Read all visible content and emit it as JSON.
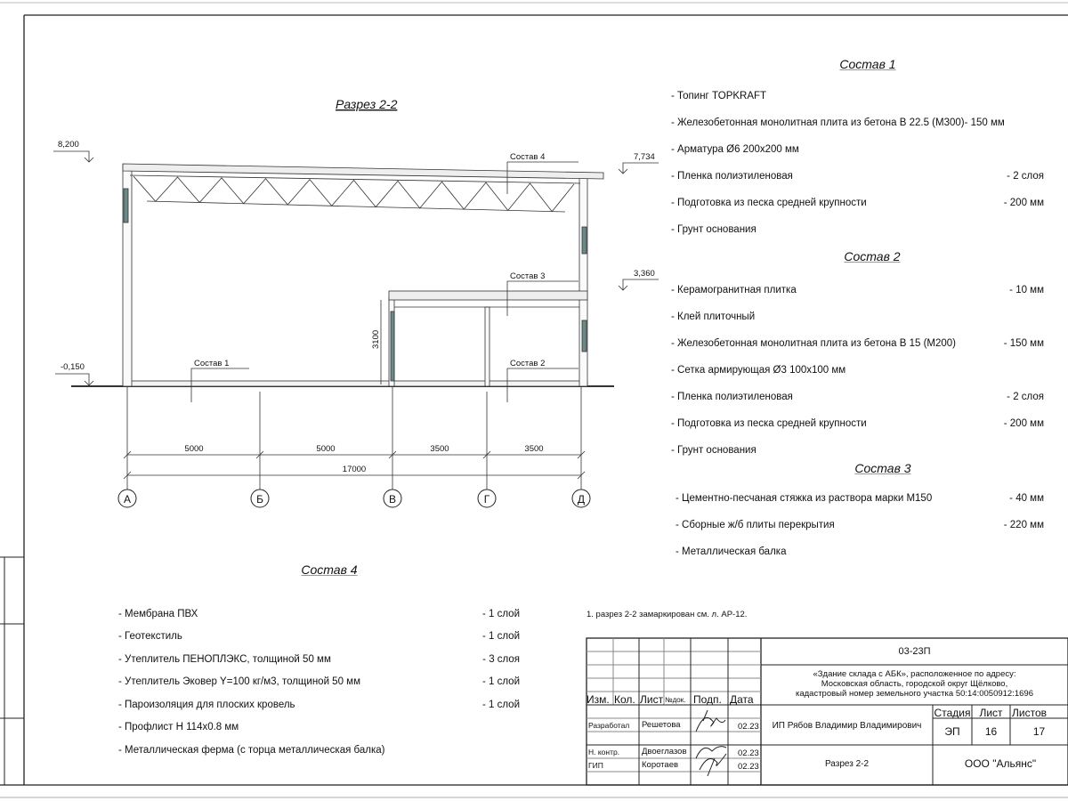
{
  "drawing": {
    "title": "Разрез 2-2",
    "levels": {
      "top_left": "8,200",
      "top_right": "7,734",
      "mid_right": "3,360",
      "ground": "-0,150"
    },
    "layer_labels": {
      "s1": "Состав 1",
      "s2": "Состав 2",
      "s3": "Состав 3",
      "s4": "Состав 4"
    },
    "height_dim": "3100",
    "spans": [
      "5000",
      "5000",
      "3500",
      "3500"
    ],
    "total_span": "17000",
    "axes": [
      "А",
      "Б",
      "В",
      "Г",
      "Д"
    ]
  },
  "compositions": {
    "s1": {
      "title": "Состав 1",
      "items": [
        {
          "label": "- Топинг TOPKRAFT",
          "value": ""
        },
        {
          "label": "- Железобетонная  монолитная плита из бетона  В 22.5 (М300)- 150 мм",
          "value": ""
        },
        {
          "label": "- Арматура Ø6 200х200 мм",
          "value": ""
        },
        {
          "label": "- Пленка полиэтиленовая",
          "value": "-  2 слоя"
        },
        {
          "label": "- Подготовка из песка средней  крупности",
          "value": "- 200 мм"
        },
        {
          "label": "- Грунт основания",
          "value": ""
        }
      ]
    },
    "s2": {
      "title": "Состав 2",
      "items": [
        {
          "label": "- Керамогранитная плитка",
          "value": "- 10 мм"
        },
        {
          "label": "- Клей плиточный",
          "value": ""
        },
        {
          "label": "- Железобетонная  монолитная плита из бетона В 15 (М200)",
          "value": "- 150 мм"
        },
        {
          "label": "- Сетка армирующая Ø3 100х100 мм",
          "value": ""
        },
        {
          "label": "- Пленка полиэтиленовая",
          "value": "-  2 слоя"
        },
        {
          "label": "- Подготовка из песка средней  крупности",
          "value": "- 200 мм"
        },
        {
          "label": "- Грунт основания",
          "value": ""
        }
      ]
    },
    "s3": {
      "title": "Состав 3",
      "items": [
        {
          "label": "- Цементно-песчаная стяжка  из раствора марки М150",
          "value": "- 40 мм"
        },
        {
          "label": "- Сборные ж/б плиты перекрытия",
          "value": "- 220 мм"
        },
        {
          "label": "- Металлическая  балка",
          "value": ""
        }
      ]
    },
    "s4": {
      "title": "Состав 4",
      "items": [
        {
          "label": "- Мембрана ПВХ",
          "value": "- 1 слой"
        },
        {
          "label": "- Геотекстиль",
          "value": "- 1 слой"
        },
        {
          "label": "- Утеплитель ПЕНОПЛЭКС, толщиной 50 мм",
          "value": "- 3 слоя"
        },
        {
          "label": "- Утеплитель Эковер Y=100 кг/м3, толщиной 50 мм",
          "value": "- 1 слой"
        },
        {
          "label": "- Пароизоляция для плоских кровель",
          "value": "- 1 слой"
        },
        {
          "label": "- Профлист Н 114х0.8 мм",
          "value": ""
        },
        {
          "label": "- Металлическая ферма (с торца металлическая балка)",
          "value": ""
        }
      ]
    }
  },
  "note": "1. разрез 2-2 замаркирован см. л. АР-12.",
  "title_block": {
    "code": "03-23П",
    "address_lines": [
      "«Здание склада с АБК», расположенное по адресу:",
      "Московская область, городской округ Щёлково,",
      "кадастровый номер земельного участка 50:14:0050912:1696"
    ],
    "headers": {
      "izm": "Изм.",
      "kol": "Кол.",
      "list": "Лист",
      "ndok": "№док.",
      "podp": "Подп.",
      "data": "Дата"
    },
    "people": [
      {
        "role": "Разработал",
        "name": "Решетова",
        "date": "02.23"
      },
      {
        "role": "Н. контр.",
        "name": "Двоеглазов",
        "date": "02.23"
      },
      {
        "role": "ГИП",
        "name": "Коротаев",
        "date": "02.23"
      }
    ],
    "organization_author": "ИП Рябов Владимир Владимирович",
    "stage_label": "Стадия",
    "sheet_label": "Лист",
    "sheets_label": "Листов",
    "stage": "ЭП",
    "sheet": "16",
    "sheets": "17",
    "sheet_title": "Разрез 2-2",
    "company": "ООО \"Альянс\""
  }
}
